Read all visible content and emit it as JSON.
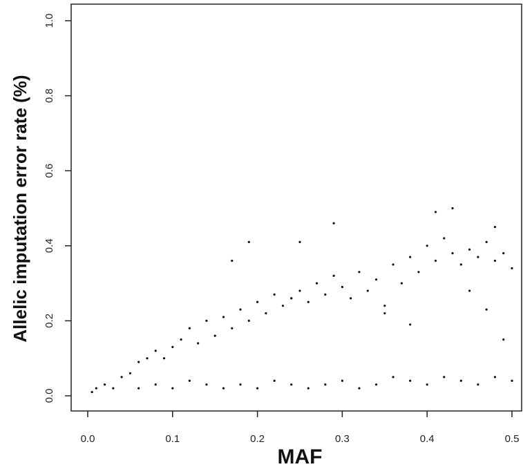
{
  "chart_data": {
    "type": "scatter",
    "title": "",
    "xlabel": "MAF",
    "ylabel": "Allelic imputation  error rate (%)",
    "xlim": [
      0.0,
      0.5
    ],
    "ylim": [
      0.0,
      1.0
    ],
    "x_ticks": [
      "0.0",
      "0.1",
      "0.2",
      "0.3",
      "0.4",
      "0.5"
    ],
    "y_ticks": [
      "0.0",
      "0.2",
      "0.4",
      "0.6",
      "0.8",
      "1.0"
    ],
    "grid": false,
    "legend": "none",
    "point_color": "#111111",
    "series": [
      {
        "x": [
          0.005,
          0.01,
          0.02,
          0.03,
          0.04,
          0.05,
          0.06,
          0.07,
          0.08,
          0.09,
          0.1,
          0.11,
          0.12,
          0.13,
          0.14,
          0.15,
          0.16,
          0.17,
          0.18,
          0.19,
          0.2,
          0.21,
          0.22,
          0.23,
          0.24,
          0.25,
          0.26,
          0.27,
          0.28,
          0.29,
          0.3,
          0.31,
          0.32,
          0.33,
          0.34,
          0.35,
          0.36,
          0.37,
          0.38,
          0.39,
          0.4,
          0.41,
          0.42,
          0.43,
          0.44,
          0.45,
          0.46,
          0.47,
          0.48,
          0.49,
          0.5,
          0.06,
          0.08,
          0.1,
          0.12,
          0.14,
          0.16,
          0.18,
          0.2,
          0.22,
          0.24,
          0.26,
          0.28,
          0.3,
          0.32,
          0.34,
          0.36,
          0.38,
          0.4,
          0.42,
          0.44,
          0.46,
          0.48,
          0.5,
          0.17,
          0.19,
          0.25,
          0.29,
          0.41,
          0.43,
          0.48,
          0.24,
          0.35,
          0.45,
          0.38,
          0.47,
          0.49
        ],
        "y": [
          0.01,
          0.02,
          0.03,
          0.02,
          0.05,
          0.06,
          0.09,
          0.1,
          0.12,
          0.1,
          0.13,
          0.15,
          0.18,
          0.14,
          0.2,
          0.16,
          0.21,
          0.18,
          0.23,
          0.2,
          0.25,
          0.22,
          0.27,
          0.24,
          0.26,
          0.28,
          0.25,
          0.3,
          0.27,
          0.32,
          0.29,
          0.26,
          0.33,
          0.28,
          0.31,
          0.24,
          0.35,
          0.3,
          0.37,
          0.33,
          0.4,
          0.36,
          0.42,
          0.38,
          0.35,
          0.39,
          0.37,
          0.41,
          0.36,
          0.38,
          0.34,
          0.02,
          0.03,
          0.02,
          0.04,
          0.03,
          0.02,
          0.03,
          0.02,
          0.04,
          0.03,
          0.02,
          0.03,
          0.04,
          0.02,
          0.03,
          0.05,
          0.04,
          0.03,
          0.05,
          0.04,
          0.03,
          0.05,
          0.04,
          0.36,
          0.41,
          0.41,
          0.46,
          0.49,
          0.5,
          0.45,
          0.26,
          0.22,
          0.28,
          0.19,
          0.23,
          0.15
        ]
      }
    ]
  }
}
